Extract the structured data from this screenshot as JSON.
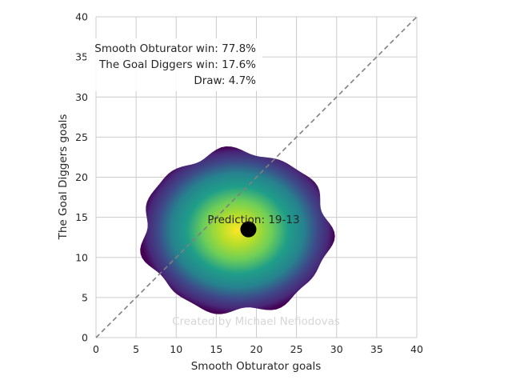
{
  "chart_data": {
    "type": "scatter",
    "title": "",
    "xlabel": "Smooth Obturator goals",
    "ylabel": "The Goal Diggers goals",
    "xlim": [
      0,
      40
    ],
    "ylim": [
      0,
      40
    ],
    "xticks": [
      0,
      5,
      10,
      15,
      20,
      25,
      30,
      35,
      40
    ],
    "yticks": [
      0,
      5,
      10,
      15,
      20,
      25,
      30,
      35,
      40
    ],
    "grid": true,
    "diagonal_line": {
      "style": "dashed",
      "color": "#808080",
      "from": [
        0,
        0
      ],
      "to": [
        40,
        40
      ]
    },
    "density": {
      "colormap": "viridis",
      "center": [
        17.5,
        13.2
      ],
      "spread": [
        5.5,
        4.8
      ],
      "outline_radius": [
        [
          11.5,
          10.0
        ],
        [
          11.8,
          10.3
        ],
        [
          11.3,
          10.1
        ],
        [
          12.0,
          9.8
        ],
        [
          11.6,
          10.4
        ],
        [
          11.9,
          9.9
        ],
        [
          11.4,
          10.2
        ],
        [
          11.7,
          10.0
        ]
      ]
    },
    "prediction_point": {
      "x": 19,
      "y": 13.5,
      "color": "#000000"
    },
    "annotations": {
      "prediction": "Prediction: 19-13",
      "home_win": "Smooth Obturator win: 77.8%",
      "away_win": "The Goal Diggers win: 17.6%",
      "draw": "Draw: 4.7%",
      "watermark": "Created by Michael Nefiodovas"
    }
  }
}
